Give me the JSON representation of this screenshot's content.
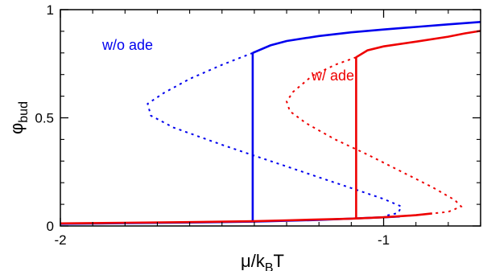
{
  "chart_data": {
    "type": "line",
    "xlabel": "μ/k",
    "xlabel_sub": "B",
    "xlabel_suffix": "T",
    "ylabel": "φ",
    "ylabel_sub": "bud",
    "xlim": [
      -2.0,
      -0.7
    ],
    "ylim": [
      0,
      1
    ],
    "x_ticks": [
      {
        "value": -2,
        "label": "-2"
      },
      {
        "value": -1,
        "label": "-1"
      }
    ],
    "y_ticks": [
      {
        "value": 0,
        "label": "0"
      },
      {
        "value": 0.5,
        "label": "0.5"
      },
      {
        "value": 1,
        "label": "1"
      }
    ],
    "grid": false,
    "series": [
      {
        "name": "w/o ade",
        "color": "#0000ee",
        "solid_lower": [
          [
            -2.0,
            0.01
          ],
          [
            -1.8,
            0.013
          ],
          [
            -1.6,
            0.016
          ],
          [
            -1.4,
            0.02
          ],
          [
            -1.2,
            0.028
          ],
          [
            -1.0,
            0.04
          ],
          [
            -0.95,
            0.044
          ]
        ],
        "transition_x": -1.405,
        "transition_y": [
          0.018,
          0.8
        ],
        "solid_upper": [
          [
            -1.405,
            0.8
          ],
          [
            -1.35,
            0.835
          ],
          [
            -1.3,
            0.855
          ],
          [
            -1.2,
            0.878
          ],
          [
            -1.1,
            0.895
          ],
          [
            -1.0,
            0.908
          ],
          [
            -0.9,
            0.92
          ],
          [
            -0.8,
            0.932
          ],
          [
            -0.7,
            0.943
          ]
        ],
        "dashed": [
          [
            -1.405,
            0.8
          ],
          [
            -1.5,
            0.745
          ],
          [
            -1.6,
            0.68
          ],
          [
            -1.68,
            0.615
          ],
          [
            -1.73,
            0.565
          ],
          [
            -1.72,
            0.51
          ],
          [
            -1.65,
            0.455
          ],
          [
            -1.5,
            0.375
          ],
          [
            -1.4,
            0.325
          ],
          [
            -1.3,
            0.275
          ],
          [
            -1.2,
            0.225
          ],
          [
            -1.1,
            0.175
          ],
          [
            -1.0,
            0.125
          ],
          [
            -0.945,
            0.09
          ],
          [
            -0.955,
            0.06
          ],
          [
            -1.0,
            0.045
          ]
        ]
      },
      {
        "name": "w/ ade",
        "color": "#ee0000",
        "solid_lower": [
          [
            -2.0,
            0.012
          ],
          [
            -1.8,
            0.015
          ],
          [
            -1.6,
            0.018
          ],
          [
            -1.4,
            0.022
          ],
          [
            -1.3,
            0.026
          ],
          [
            -1.2,
            0.03
          ],
          [
            -1.1,
            0.034
          ],
          [
            -1.0,
            0.04
          ],
          [
            -0.9,
            0.05
          ],
          [
            -0.85,
            0.058
          ]
        ],
        "transition_x": -1.085,
        "transition_y": [
          0.03,
          0.78
        ],
        "solid_upper": [
          [
            -1.085,
            0.78
          ],
          [
            -1.05,
            0.812
          ],
          [
            -1.0,
            0.83
          ],
          [
            -0.9,
            0.852
          ],
          [
            -0.8,
            0.875
          ],
          [
            -0.75,
            0.89
          ],
          [
            -0.7,
            0.902
          ]
        ],
        "dashed": [
          [
            -1.085,
            0.78
          ],
          [
            -1.15,
            0.745
          ],
          [
            -1.22,
            0.695
          ],
          [
            -1.28,
            0.62
          ],
          [
            -1.3,
            0.575
          ],
          [
            -1.29,
            0.53
          ],
          [
            -1.24,
            0.475
          ],
          [
            -1.15,
            0.4
          ],
          [
            -1.05,
            0.33
          ],
          [
            -0.95,
            0.255
          ],
          [
            -0.85,
            0.18
          ],
          [
            -0.78,
            0.12
          ],
          [
            -0.76,
            0.09
          ],
          [
            -0.8,
            0.065
          ],
          [
            -0.85,
            0.058
          ]
        ]
      }
    ]
  }
}
